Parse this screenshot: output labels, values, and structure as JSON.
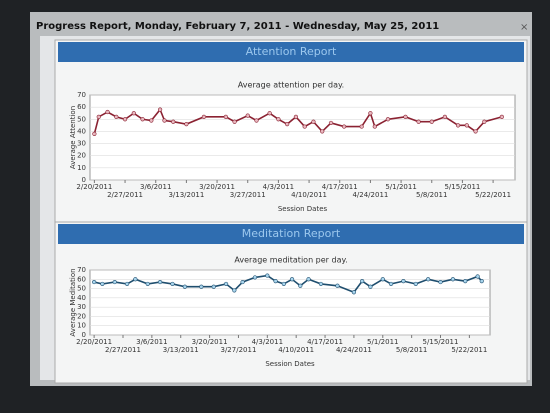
{
  "window_title": "Progress Report, Monday, February 7, 2011 - Wednesday, May 25, 2011",
  "chart_data": [
    {
      "type": "line",
      "header": "Attention Report",
      "title": "Average attention per day.",
      "y_label": "Average Attention",
      "x_label": "Session Dates",
      "color": "#8b2232",
      "marker_color": "#e8b8c0",
      "x": [
        "2011-02-20",
        "2011-02-21",
        "2011-02-23",
        "2011-02-25",
        "2011-02-27",
        "2011-03-01",
        "2011-03-03",
        "2011-03-05",
        "2011-03-07",
        "2011-03-08",
        "2011-03-10",
        "2011-03-13",
        "2011-03-17",
        "2011-03-22",
        "2011-03-24",
        "2011-03-27",
        "2011-03-29",
        "2011-04-01",
        "2011-04-03",
        "2011-04-05",
        "2011-04-07",
        "2011-04-09",
        "2011-04-11",
        "2011-04-13",
        "2011-04-15",
        "2011-04-18",
        "2011-04-22",
        "2011-04-24",
        "2011-04-25",
        "2011-04-28",
        "2011-05-02",
        "2011-05-05",
        "2011-05-08",
        "2011-05-11",
        "2011-05-14",
        "2011-05-16",
        "2011-05-18",
        "2011-05-20",
        "2011-05-24"
      ],
      "values": [
        38,
        52,
        56,
        52,
        50,
        55,
        50,
        49,
        58,
        49,
        48,
        46,
        52,
        52,
        48,
        53,
        49,
        55,
        50,
        46,
        52,
        44,
        48,
        40,
        47,
        44,
        44,
        55,
        44,
        50,
        52,
        48,
        48,
        52,
        45,
        45,
        40,
        48,
        52
      ],
      "xlim": [
        "2011-02-19",
        "2011-05-27"
      ],
      "xticks": [
        {
          "value": "2011-02-20",
          "label": "2/20/2011"
        },
        {
          "value": "2011-02-27",
          "label": "2/27/2011"
        },
        {
          "value": "2011-03-06",
          "label": "3/6/2011"
        },
        {
          "value": "2011-03-13",
          "label": "3/13/2011"
        },
        {
          "value": "2011-03-20",
          "label": "3/20/2011"
        },
        {
          "value": "2011-03-27",
          "label": "3/27/2011"
        },
        {
          "value": "2011-04-03",
          "label": "4/3/2011"
        },
        {
          "value": "2011-04-10",
          "label": "4/10/2011"
        },
        {
          "value": "2011-04-17",
          "label": "4/17/2011"
        },
        {
          "value": "2011-04-24",
          "label": "4/24/2011"
        },
        {
          "value": "2011-05-01",
          "label": "5/1/2011"
        },
        {
          "value": "2011-05-08",
          "label": "5/8/2011"
        },
        {
          "value": "2011-05-15",
          "label": "5/15/2011"
        },
        {
          "value": "2011-05-22",
          "label": "5/22/2011"
        }
      ],
      "ylim": [
        0,
        70
      ],
      "yticks": [
        0,
        10,
        20,
        30,
        40,
        50,
        60,
        70
      ],
      "grid": true
    },
    {
      "type": "line",
      "header": "Meditation Report",
      "title": "Average meditation per day.",
      "y_label": "Average Meditation",
      "x_label": "Session Dates",
      "color": "#1f4e6e",
      "marker_color": "#a8d4ec",
      "x": [
        "2011-02-20",
        "2011-02-22",
        "2011-02-25",
        "2011-02-28",
        "2011-03-02",
        "2011-03-05",
        "2011-03-08",
        "2011-03-11",
        "2011-03-14",
        "2011-03-18",
        "2011-03-21",
        "2011-03-24",
        "2011-03-26",
        "2011-03-28",
        "2011-03-31",
        "2011-04-03",
        "2011-04-05",
        "2011-04-07",
        "2011-04-09",
        "2011-04-11",
        "2011-04-13",
        "2011-04-16",
        "2011-04-20",
        "2011-04-24",
        "2011-04-26",
        "2011-04-28",
        "2011-05-01",
        "2011-05-03",
        "2011-05-06",
        "2011-05-09",
        "2011-05-12",
        "2011-05-15",
        "2011-05-18",
        "2011-05-21",
        "2011-05-24",
        "2011-05-25"
      ],
      "values": [
        57,
        55,
        57,
        55,
        60,
        55,
        57,
        55,
        52,
        52,
        52,
        55,
        48,
        57,
        62,
        64,
        58,
        55,
        60,
        53,
        60,
        55,
        53,
        46,
        58,
        52,
        60,
        55,
        58,
        55,
        60,
        57,
        60,
        58,
        63,
        58
      ],
      "xlim": [
        "2011-02-19",
        "2011-05-27"
      ],
      "xticks": [
        {
          "value": "2011-02-20",
          "label": "2/20/2011"
        },
        {
          "value": "2011-02-27",
          "label": "2/27/2011"
        },
        {
          "value": "2011-03-06",
          "label": "3/6/2011"
        },
        {
          "value": "2011-03-13",
          "label": "3/13/2011"
        },
        {
          "value": "2011-03-20",
          "label": "3/20/2011"
        },
        {
          "value": "2011-03-27",
          "label": "3/27/2011"
        },
        {
          "value": "2011-04-03",
          "label": "4/3/2011"
        },
        {
          "value": "2011-04-10",
          "label": "4/10/2011"
        },
        {
          "value": "2011-04-17",
          "label": "4/17/2011"
        },
        {
          "value": "2011-04-24",
          "label": "4/24/2011"
        },
        {
          "value": "2011-05-01",
          "label": "5/1/2011"
        },
        {
          "value": "2011-05-08",
          "label": "5/8/2011"
        },
        {
          "value": "2011-05-15",
          "label": "5/15/2011"
        },
        {
          "value": "2011-05-22",
          "label": "5/22/2011"
        }
      ],
      "ylim": [
        0,
        70
      ],
      "yticks": [
        0,
        10,
        20,
        30,
        40,
        50,
        60,
        70
      ],
      "grid": true
    }
  ]
}
